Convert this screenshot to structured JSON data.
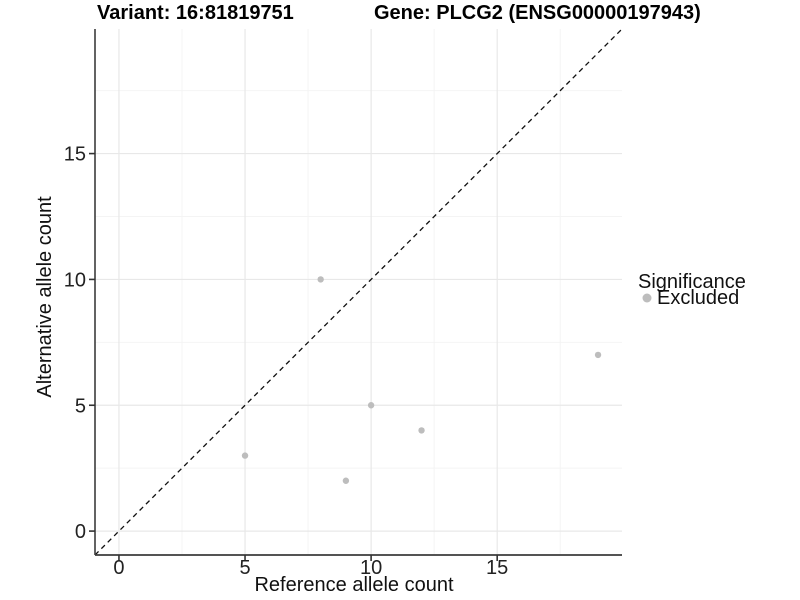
{
  "chart_data": {
    "type": "scatter",
    "titles": {
      "left": "Variant: 16:81819751",
      "right": "Gene: PLCG2 (ENSG00000197943)"
    },
    "xlabel": "Reference allele count",
    "ylabel": "Alternative allele count",
    "xlim": [
      -0.95,
      19.95
    ],
    "ylim": [
      -0.95,
      19.95
    ],
    "x_ticks": [
      0,
      5,
      10,
      15
    ],
    "y_ticks": [
      0,
      5,
      10,
      15
    ],
    "x_minor_ticks": [
      2.5,
      7.5,
      12.5,
      17.5
    ],
    "y_minor_ticks": [
      2.5,
      7.5,
      12.5,
      17.5
    ],
    "grid": true,
    "series": [
      {
        "name": "Excluded",
        "color": "#bdbdbd",
        "points": [
          [
            5,
            3
          ],
          [
            8,
            10
          ],
          [
            9,
            2
          ],
          [
            10,
            5
          ],
          [
            12,
            4
          ],
          [
            19,
            7
          ]
        ]
      }
    ],
    "reference_line": {
      "kind": "identity",
      "dashed": true,
      "color": "#111111"
    },
    "legend": {
      "title": "Significance",
      "position": "right",
      "items": [
        {
          "label": "Excluded",
          "color": "#bdbdbd"
        }
      ]
    }
  },
  "colors": {
    "background": "#ffffff",
    "axis_line": "#3c3c3c",
    "tick_mark": "#333333",
    "tick_text": "#222222",
    "grid_major": "#e8e8e8",
    "grid_minor": "#f4f4f4",
    "point": "#bdbdbd"
  }
}
